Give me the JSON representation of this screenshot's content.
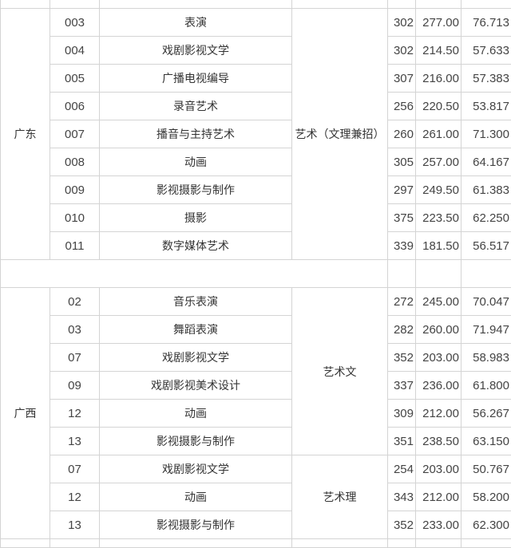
{
  "guangdong": {
    "province": "广东",
    "category": "艺术（文理兼招）",
    "rows": [
      [
        "003",
        "表演",
        "302",
        "277.00",
        "76.713"
      ],
      [
        "004",
        "戏剧影视文学",
        "302",
        "214.50",
        "57.633"
      ],
      [
        "005",
        "广播电视编导",
        "307",
        "216.00",
        "57.383"
      ],
      [
        "006",
        "录音艺术",
        "256",
        "220.50",
        "53.817"
      ],
      [
        "007",
        "播音与主持艺术",
        "260",
        "261.00",
        "71.300"
      ],
      [
        "008",
        "动画",
        "305",
        "257.00",
        "64.167"
      ],
      [
        "009",
        "影视摄影与制作",
        "297",
        "249.50",
        "61.383"
      ],
      [
        "010",
        "摄影",
        "375",
        "223.50",
        "62.250"
      ],
      [
        "011",
        "数字媒体艺术",
        "339",
        "181.50",
        "56.517"
      ]
    ]
  },
  "guangxi": {
    "province": "广西",
    "category_arts": "艺术文",
    "category_sci": "艺术理",
    "rows": [
      [
        "02",
        "音乐表演",
        "272",
        "245.00",
        "70.047"
      ],
      [
        "03",
        "舞蹈表演",
        "282",
        "260.00",
        "71.947"
      ],
      [
        "07",
        "戏剧影视文学",
        "352",
        "203.00",
        "58.983"
      ],
      [
        "09",
        "戏剧影视美术设计",
        "337",
        "236.00",
        "61.800"
      ],
      [
        "12",
        "动画",
        "309",
        "212.00",
        "56.267"
      ],
      [
        "13",
        "影视摄影与制作",
        "351",
        "238.50",
        "63.150"
      ],
      [
        "07",
        "戏剧影视文学",
        "254",
        "203.00",
        "50.767"
      ],
      [
        "12",
        "动画",
        "343",
        "212.00",
        "58.200"
      ],
      [
        "13",
        "影视摄影与制作",
        "352",
        "233.00",
        "62.300"
      ]
    ]
  }
}
